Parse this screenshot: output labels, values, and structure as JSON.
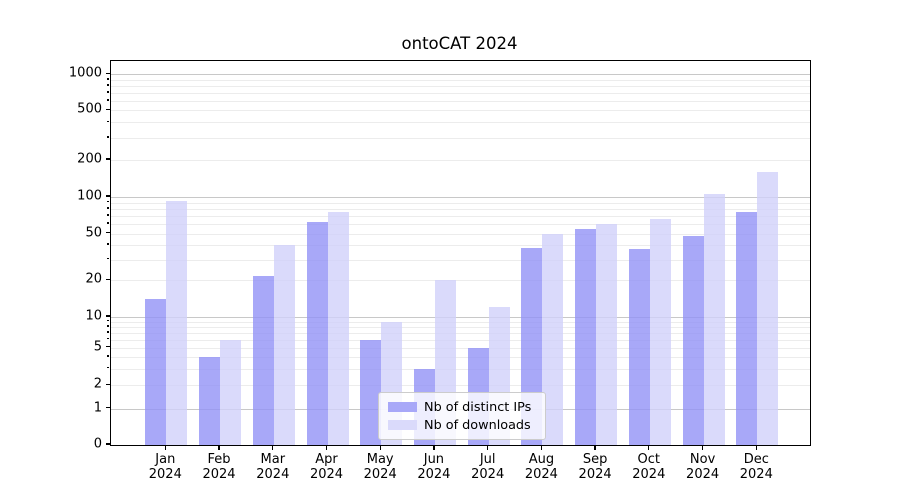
{
  "title": "ontoCAT 2024",
  "chart_data": {
    "type": "bar",
    "title": "ontoCAT 2024",
    "categories": [
      "Jan",
      "Feb",
      "Mar",
      "Apr",
      "May",
      "Jun",
      "Jul",
      "Aug",
      "Sep",
      "Oct",
      "Nov",
      "Dec"
    ],
    "category_year": "2024",
    "series": [
      {
        "name": "Nb of distinct IPs",
        "color": "#a8a8f8",
        "color_rgba": "rgba(146,146,246,0.8)",
        "values": [
          14,
          4,
          22,
          63,
          6,
          3,
          5,
          38,
          55,
          37,
          48,
          75
        ]
      },
      {
        "name": "Nb of downloads",
        "color": "#dadafb",
        "color_rgba": "rgba(209,209,250,0.8)",
        "values": [
          93,
          6,
          40,
          76,
          9,
          20,
          12,
          50,
          60,
          66,
          105,
          160
        ]
      }
    ],
    "yscale": "symlog",
    "ytick_labels": [
      "0",
      "1",
      "2",
      "5",
      "10",
      "20",
      "50",
      "100",
      "200",
      "500",
      "1000"
    ],
    "ytick_values": [
      0,
      1,
      2,
      5,
      10,
      20,
      50,
      100,
      200,
      500,
      1000
    ],
    "ylim": [
      0,
      1300
    ],
    "grid": "on",
    "legend_position": "lower-center",
    "colors": {
      "major_grid": "#c8c8c8",
      "minor_grid": "#ececec",
      "axis": "#000000",
      "background": "#ffffff"
    }
  }
}
